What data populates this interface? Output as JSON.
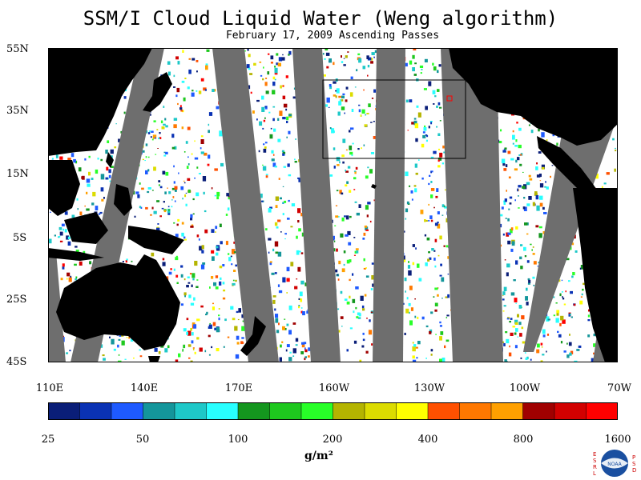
{
  "title": "SSM/I Cloud Liquid Water (Weng algorithm)",
  "subtitle": "February 17, 2009  Ascending Passes",
  "lat_labels": [
    "55N",
    "35N",
    "15N",
    "5S",
    "25S",
    "45S"
  ],
  "lon_labels": [
    "110E",
    "140E",
    "170E",
    "160W",
    "130W",
    "100W",
    "70W"
  ],
  "colorbar": {
    "tick_labels": [
      "25",
      "50",
      "100",
      "200",
      "400",
      "800",
      "1600"
    ],
    "units": "g/m²",
    "colors": [
      "#0a1e78",
      "#0a32b4",
      "#1e5aff",
      "#14969b",
      "#1ec8c8",
      "#28ffff",
      "#14961e",
      "#1ec81e",
      "#28ff28",
      "#b4b400",
      "#dcdc00",
      "#ffff00",
      "#ff5000",
      "#ff7800",
      "#ffa000",
      "#a00000",
      "#d20000",
      "#ff0000"
    ]
  },
  "logo": {
    "left_letters": "ESRL",
    "right_letters": "PSD",
    "center_text": "NOAA"
  },
  "colors": {
    "land": "#000000",
    "no_data_swath": "#6e6e6e",
    "ocean_background": "#ffffff"
  }
}
